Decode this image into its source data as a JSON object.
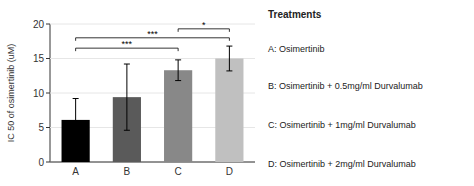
{
  "chart_data": {
    "type": "bar",
    "categories": [
      "A",
      "B",
      "C",
      "D"
    ],
    "values": [
      6.1,
      9.4,
      13.3,
      15.0
    ],
    "errors": [
      3.1,
      4.8,
      1.5,
      1.8
    ],
    "colors": [
      "#000000",
      "#5a5a5a",
      "#888888",
      "#c0c0c0"
    ],
    "ylabel": "IC 50 of osimertinib (uM)",
    "ylim": [
      0,
      20
    ],
    "yticks": [
      0,
      5,
      10,
      15,
      20
    ],
    "annotations": [
      {
        "from": "A",
        "to": "C",
        "y": 16.5,
        "text": "***"
      },
      {
        "from": "A",
        "to": "D",
        "y": 18.0,
        "text": "***"
      },
      {
        "from": "C",
        "to": "D",
        "y": 19.3,
        "text": "*"
      }
    ],
    "legend_title": "Treatments",
    "legend_entries": [
      "A: Osimertinib",
      "B: Osimertinib + 0.5mg/ml Durvalumab",
      "C: Osimertinib + 1mg/ml Durvalumab",
      "D: Osimertinib + 2mg/ml Durvalumab"
    ]
  }
}
